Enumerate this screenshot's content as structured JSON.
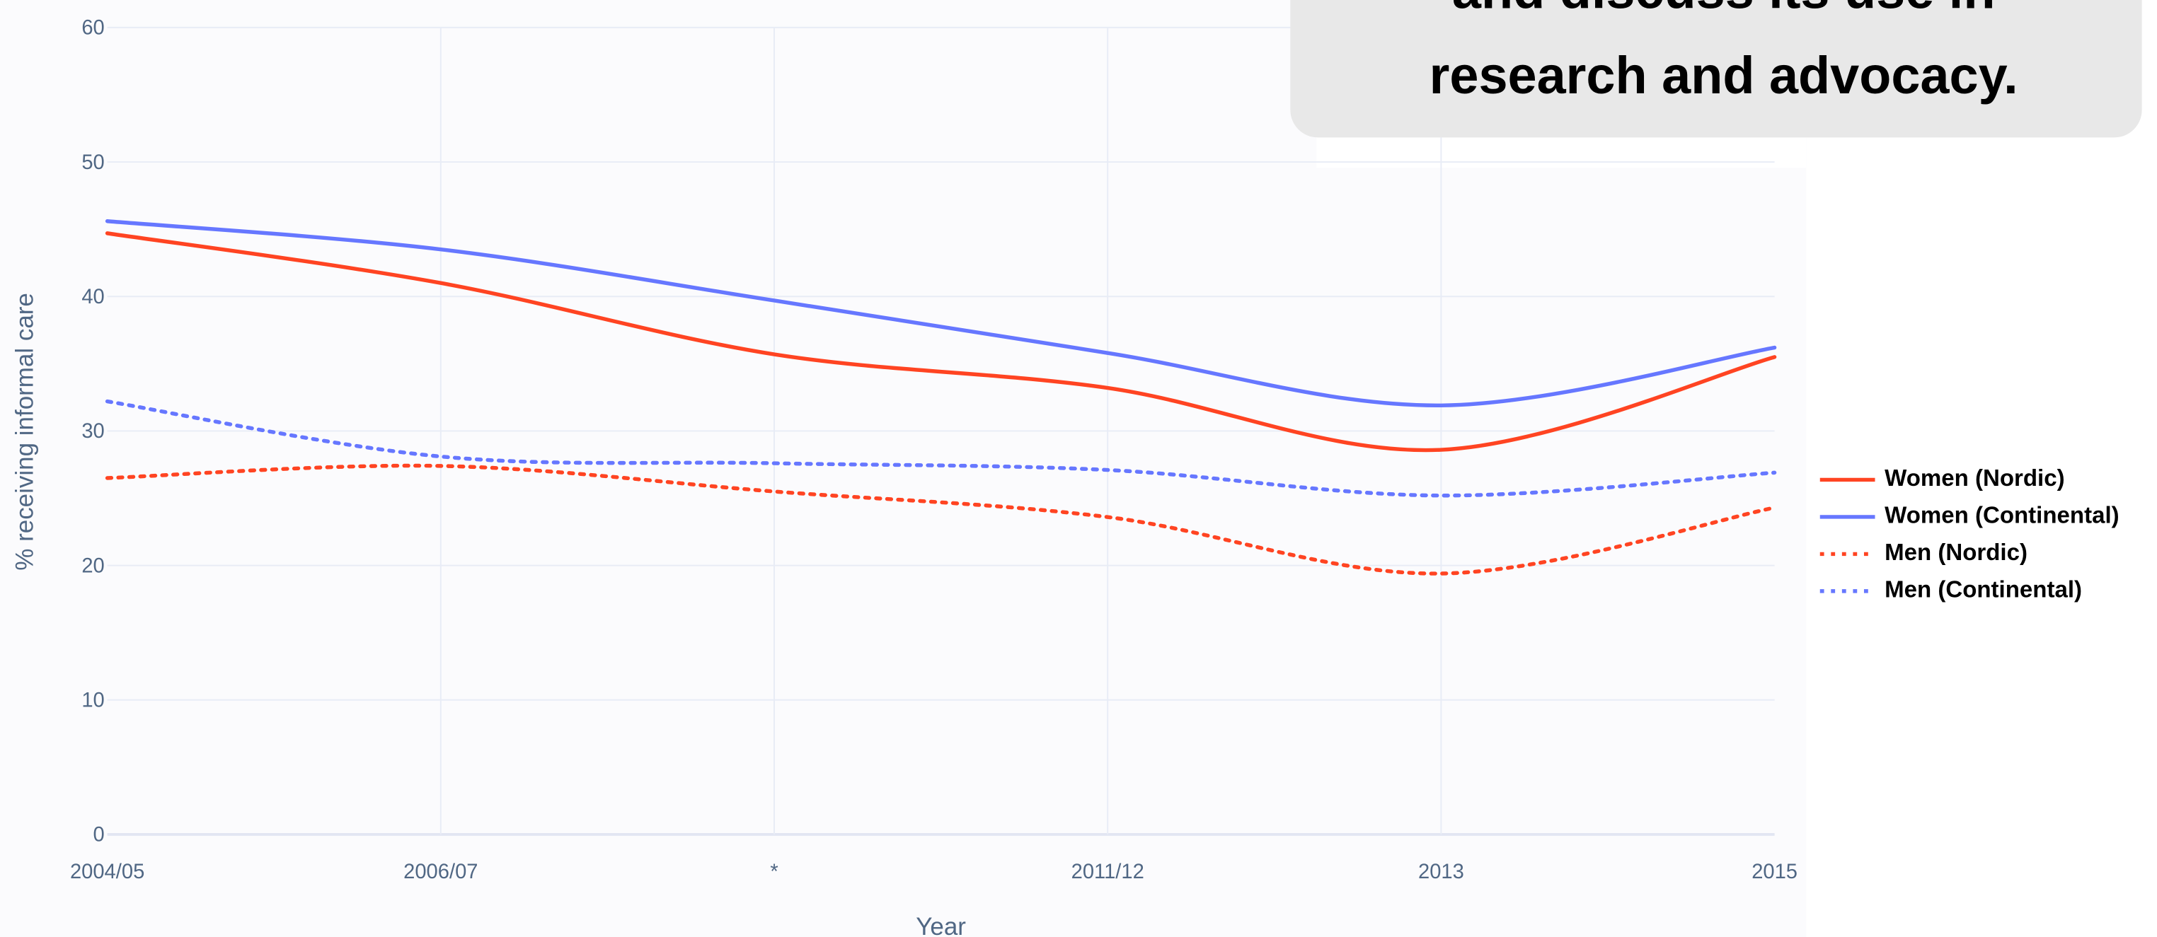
{
  "chart_data": {
    "type": "line",
    "annotations": [
      "and discuss its use in",
      "research and advocacy."
    ],
    "xlabel": "Year",
    "ylabel": "% receiving informal care",
    "categories": [
      "2004/05",
      "2006/07",
      "*",
      "2011/12",
      "2013",
      "2015"
    ],
    "series": [
      {
        "name": "Women (Nordic)",
        "color": "#ff4422",
        "dash": "solid",
        "values": [
          44.7,
          41.0,
          35.7,
          33.2,
          28.6,
          35.5
        ]
      },
      {
        "name": "Women (Continental)",
        "color": "#6677ff",
        "dash": "solid",
        "values": [
          45.6,
          43.5,
          39.7,
          35.8,
          31.9,
          36.2
        ]
      },
      {
        "name": "Men (Nordic)",
        "color": "#ff4422",
        "dash": "dot",
        "values": [
          26.5,
          27.4,
          25.5,
          23.6,
          19.4,
          24.3
        ]
      },
      {
        "name": "Men (Continental)",
        "color": "#6677ff",
        "dash": "dot",
        "values": [
          32.2,
          28.1,
          27.6,
          27.1,
          25.2,
          26.9
        ]
      }
    ],
    "ylim": [
      0,
      60
    ],
    "yticks": [
      0,
      10,
      20,
      30,
      40,
      50,
      60
    ],
    "grid": true,
    "legend": "right"
  }
}
